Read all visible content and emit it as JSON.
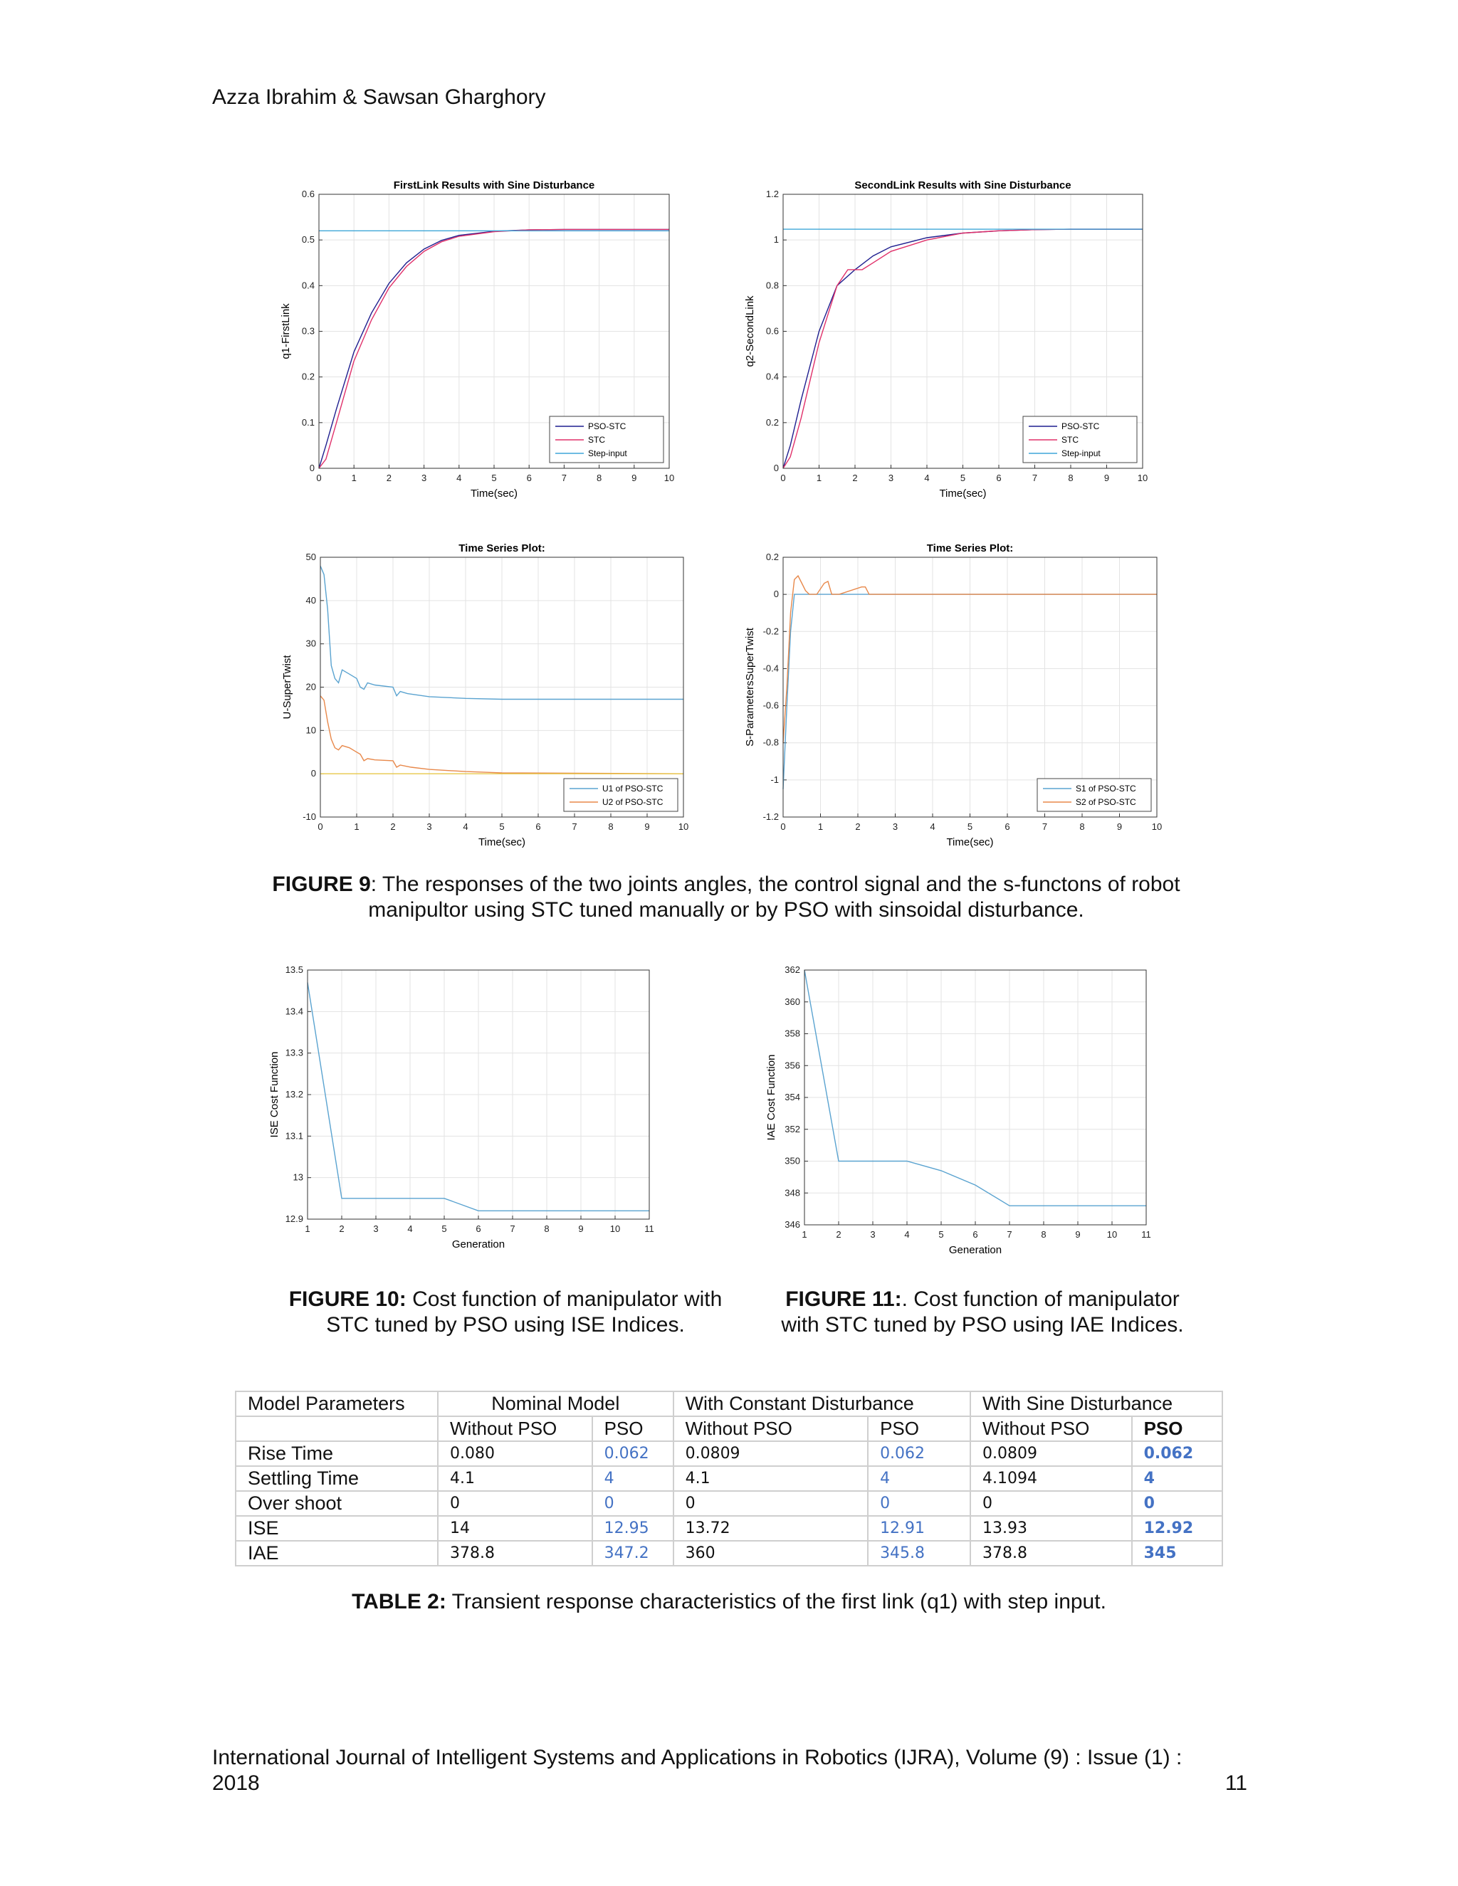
{
  "header": {
    "authors": "Azza Ibrahim & Sawsan Gharghory"
  },
  "figure9": {
    "caption_label": "FIGURE 9",
    "caption_text": ": The responses of the two joints angles, the control signal and the s-functons  of robot",
    "caption_text2": "manipultor using STC tuned manually or by PSO with sinsoidal disturbance."
  },
  "figure10": {
    "caption_label": "FIGURE 10:",
    "caption_text": " Cost function of manipulator with",
    "caption_text2": "STC tuned by PSO using ISE Indices."
  },
  "figure11": {
    "caption_label": "FIGURE 11:",
    "caption_text": ". Cost function of manipulator",
    "caption_text2": "with STC tuned by PSO using IAE Indices."
  },
  "colors": {
    "pso_stc": "#1f1f8f",
    "stc": "#e0306a",
    "step": "#3fa6d8",
    "u1": "#5aa3d0",
    "u2": "#e8884a"
  },
  "chart_data": [
    {
      "id": "first-link",
      "type": "line",
      "title": "FirstLink Results with Sine Disturbance",
      "xlabel": "Time(sec)",
      "ylabel": "q1-FirstLink",
      "xlim": [
        0,
        10
      ],
      "ylim": [
        0,
        0.6
      ],
      "xticks": [
        0,
        1,
        2,
        3,
        4,
        5,
        6,
        7,
        8,
        9,
        10
      ],
      "yticks": [
        0,
        0.1,
        0.2,
        0.3,
        0.4,
        0.5,
        0.6
      ],
      "grid": true,
      "legend": "bottom-right",
      "series": [
        {
          "name": "PSO-STC",
          "color": "#1f1f8f",
          "x": [
            0,
            0.2,
            0.5,
            1,
            1.5,
            2,
            2.5,
            3,
            3.5,
            4,
            5,
            6,
            7,
            8,
            10
          ],
          "y": [
            0,
            0.05,
            0.13,
            0.255,
            0.34,
            0.405,
            0.45,
            0.48,
            0.499,
            0.51,
            0.519,
            0.522,
            0.523,
            0.523,
            0.523
          ]
        },
        {
          "name": "STC",
          "color": "#e0306a",
          "x": [
            0,
            0.2,
            0.5,
            1,
            1.5,
            2,
            2.5,
            3,
            3.5,
            4,
            5,
            6,
            7,
            8,
            10
          ],
          "y": [
            0,
            0.02,
            0.1,
            0.235,
            0.325,
            0.395,
            0.442,
            0.475,
            0.496,
            0.508,
            0.518,
            0.522,
            0.523,
            0.523,
            0.523
          ]
        },
        {
          "name": "Step-input",
          "color": "#3fa6d8",
          "x": [
            0,
            10
          ],
          "y": [
            0.52,
            0.52
          ]
        }
      ]
    },
    {
      "id": "second-link",
      "type": "line",
      "title": "SecondLink Results with Sine Disturbance",
      "xlabel": "Time(sec)",
      "ylabel": "q2-SecondLink",
      "xlim": [
        0,
        10
      ],
      "ylim": [
        0,
        1.2
      ],
      "xticks": [
        0,
        1,
        2,
        3,
        4,
        5,
        6,
        7,
        8,
        9,
        10
      ],
      "yticks": [
        0,
        0.2,
        0.4,
        0.6,
        0.8,
        1,
        1.2
      ],
      "grid": true,
      "legend": "bottom-right",
      "series": [
        {
          "name": "PSO-STC",
          "color": "#1f1f8f",
          "x": [
            0,
            0.2,
            0.5,
            1,
            1.5,
            2,
            2.5,
            3,
            4,
            5,
            6,
            7,
            8,
            10
          ],
          "y": [
            0,
            0.1,
            0.3,
            0.6,
            0.8,
            0.87,
            0.93,
            0.97,
            1.01,
            1.03,
            1.04,
            1.045,
            1.047,
            1.047
          ]
        },
        {
          "name": "STC",
          "color": "#e0306a",
          "x": [
            0,
            0.2,
            0.5,
            1,
            1.5,
            1.8,
            2.2,
            2.5,
            3,
            4,
            5,
            6,
            7,
            8,
            10
          ],
          "y": [
            0,
            0.05,
            0.22,
            0.55,
            0.8,
            0.87,
            0.87,
            0.9,
            0.95,
            1.0,
            1.03,
            1.04,
            1.045,
            1.047,
            1.047
          ]
        },
        {
          "name": "Step-input",
          "color": "#3fa6d8",
          "x": [
            0,
            10
          ],
          "y": [
            1.047,
            1.047
          ]
        }
      ]
    },
    {
      "id": "u-supertwist",
      "type": "line",
      "title": "Time Series Plot:",
      "xlabel": "Time(sec)",
      "ylabel": "U-SuperTwist",
      "xlim": [
        0,
        10
      ],
      "ylim": [
        -10,
        50
      ],
      "xticks": [
        0,
        1,
        2,
        3,
        4,
        5,
        6,
        7,
        8,
        9,
        10
      ],
      "yticks": [
        -10,
        0,
        10,
        20,
        30,
        40,
        50
      ],
      "grid": true,
      "legend": "bottom-right",
      "series": [
        {
          "name": "U1 of PSO-STC",
          "color": "#5aa3d0",
          "x": [
            0,
            0.1,
            0.2,
            0.3,
            0.4,
            0.5,
            0.6,
            0.7,
            0.8,
            1,
            1.1,
            1.2,
            1.3,
            1.5,
            2,
            2.1,
            2.2,
            2.4,
            3,
            4,
            5,
            6,
            10
          ],
          "y": [
            48,
            46,
            38,
            25,
            22,
            21,
            24,
            23.5,
            23,
            22,
            20,
            19.5,
            21,
            20.5,
            20,
            18,
            19,
            18.5,
            17.8,
            17.4,
            17.2,
            17.2,
            17.2
          ]
        },
        {
          "name": "U2 of PSO-STC",
          "color": "#e8884a",
          "x": [
            0,
            0.1,
            0.2,
            0.3,
            0.4,
            0.5,
            0.6,
            0.8,
            1,
            1.1,
            1.2,
            1.3,
            1.5,
            2,
            2.1,
            2.2,
            2.5,
            3,
            4,
            5,
            10
          ],
          "y": [
            18,
            17,
            12,
            8,
            6,
            5.5,
            6.5,
            6,
            5,
            4.5,
            3,
            3.5,
            3.2,
            3,
            1.5,
            2,
            1.5,
            1,
            0.5,
            0.2,
            0
          ]
        },
        {
          "name": "zero",
          "color": "#e8c84a",
          "x": [
            0,
            10
          ],
          "y": [
            0,
            0
          ]
        }
      ]
    },
    {
      "id": "s-parameters",
      "type": "line",
      "title": "Time Series Plot:",
      "xlabel": "Time(sec)",
      "ylabel": "S-ParametersSuperTwist",
      "xlim": [
        0,
        10
      ],
      "ylim": [
        -1.2,
        0.2
      ],
      "xticks": [
        0,
        1,
        2,
        3,
        4,
        5,
        6,
        7,
        8,
        9,
        10
      ],
      "yticks": [
        -1.2,
        -1,
        -0.8,
        -0.6,
        -0.4,
        -0.2,
        0,
        0.2
      ],
      "grid": true,
      "legend": "bottom-right",
      "series": [
        {
          "name": "S1 of PSO-STC",
          "color": "#5aa3d0",
          "x": [
            0,
            0.1,
            0.2,
            0.3,
            0.4,
            0.5,
            10
          ],
          "y": [
            -1.05,
            -0.6,
            -0.2,
            0,
            0,
            0,
            0
          ]
        },
        {
          "name": "S2 of PSO-STC",
          "color": "#e8884a",
          "x": [
            0,
            0.1,
            0.2,
            0.3,
            0.4,
            0.5,
            0.6,
            0.7,
            0.9,
            1.1,
            1.2,
            1.3,
            1.5,
            2.1,
            2.2,
            2.3,
            2.5,
            10
          ],
          "y": [
            -0.8,
            -0.5,
            -0.1,
            0.08,
            0.1,
            0.06,
            0.02,
            0,
            0,
            0.06,
            0.07,
            0,
            0,
            0.04,
            0.04,
            0,
            0,
            0
          ]
        }
      ]
    },
    {
      "id": "ise-cost",
      "type": "line",
      "title": "",
      "xlabel": "Generation",
      "ylabel": "ISE Cost Function",
      "xlim": [
        1,
        11
      ],
      "ylim": [
        12.9,
        13.5
      ],
      "xticks": [
        1,
        2,
        3,
        4,
        5,
        6,
        7,
        8,
        9,
        10,
        11
      ],
      "yticks": [
        12.9,
        13,
        13.1,
        13.2,
        13.3,
        13.4,
        13.5
      ],
      "grid": true,
      "legend": "none",
      "series": [
        {
          "name": "",
          "color": "#5aa3d0",
          "x": [
            1,
            2,
            3,
            4,
            5,
            6,
            7,
            8,
            9,
            10,
            11
          ],
          "y": [
            13.47,
            12.95,
            12.95,
            12.95,
            12.95,
            12.92,
            12.92,
            12.92,
            12.92,
            12.92,
            12.92
          ]
        }
      ]
    },
    {
      "id": "iae-cost",
      "type": "line",
      "title": "",
      "xlabel": "Generation",
      "ylabel": "IAE Cost Function",
      "xlim": [
        1,
        11
      ],
      "ylim": [
        346,
        362
      ],
      "xticks": [
        1,
        2,
        3,
        4,
        5,
        6,
        7,
        8,
        9,
        10,
        11
      ],
      "yticks": [
        346,
        348,
        350,
        352,
        354,
        356,
        358,
        360,
        362
      ],
      "grid": true,
      "legend": "none",
      "series": [
        {
          "name": "",
          "color": "#5aa3d0",
          "x": [
            1,
            2,
            3,
            4,
            5,
            6,
            7,
            8,
            9,
            10,
            11
          ],
          "y": [
            362,
            350,
            350,
            350,
            349.4,
            348.5,
            347.2,
            347.2,
            347.2,
            347.2,
            347.2
          ]
        }
      ]
    }
  ],
  "table2": {
    "header": {
      "c0": "Model Parameters",
      "c1": "Nominal Model",
      "c2": "With Constant Disturbance",
      "c3": "With Sine Disturbance"
    },
    "sub": [
      "Without PSO",
      "PSO",
      "Without PSO",
      "PSO",
      "Without PSO",
      "PSO"
    ],
    "rows": [
      {
        "label": "Rise Time",
        "v": [
          "0.080",
          "0.062",
          "0.0809",
          "0.062",
          "0.0809",
          "0.062"
        ]
      },
      {
        "label": "Settling Time",
        "v": [
          "4.1",
          "4",
          "4.1",
          "4",
          "4.1094",
          "4"
        ]
      },
      {
        "label": "Over shoot",
        "v": [
          "0",
          "0",
          "0",
          "0",
          "0",
          "0"
        ]
      },
      {
        "label": "ISE",
        "v": [
          "14",
          "12.95",
          "13.72",
          "12.91",
          "13.93",
          "12.92"
        ]
      },
      {
        "label": "IAE",
        "v": [
          "378.8",
          "347.2",
          "360",
          "345.8",
          "378.8",
          "345"
        ]
      }
    ],
    "caption_label": "TABLE 2:",
    "caption_text": " Transient response characteristics of  the first link (q1) with step input."
  },
  "footer": {
    "journal": "International Journal of Intelligent Systems and Applications in Robotics (IJRA), Volume (9) : Issue (1) :",
    "year": "2018",
    "page": "11"
  }
}
